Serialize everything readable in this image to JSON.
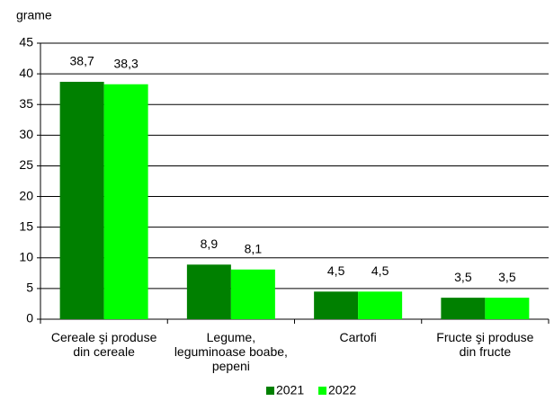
{
  "chart_data": {
    "type": "bar",
    "y_label": "grame",
    "categories": [
      "Cereale şi produse din cereale",
      "Legume, leguminoase boabe, pepeni",
      "Cartofi",
      "Fructe şi produse din fructe"
    ],
    "series": [
      {
        "name": "2021",
        "color": "#008000",
        "values": [
          38.7,
          8.9,
          4.5,
          3.5
        ],
        "value_labels": [
          "38,7",
          "8,9",
          "4,5",
          "3,5"
        ]
      },
      {
        "name": "2022",
        "color": "#00ff00",
        "values": [
          38.3,
          8.1,
          4.5,
          3.5
        ],
        "value_labels": [
          "38,3",
          "8,1",
          "4,5",
          "3,5"
        ]
      }
    ],
    "ylim": [
      0,
      45
    ],
    "yticks": [
      0,
      5,
      10,
      15,
      20,
      25,
      30,
      35,
      40,
      45
    ],
    "grid": true,
    "legend": "bottom"
  }
}
